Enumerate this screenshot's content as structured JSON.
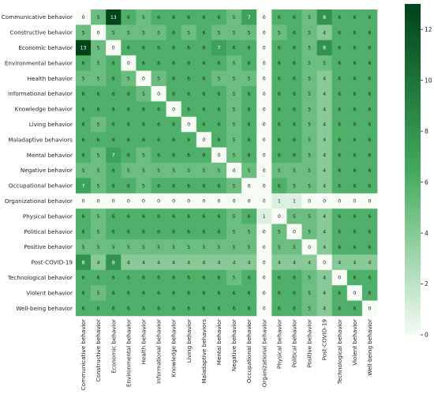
{
  "chart_data": {
    "type": "heatmap",
    "rows": [
      "Communicative behavior",
      "Constructive behavior",
      "Economic behavior",
      "Environmental behavior",
      "Health behavior",
      "Informational behavior",
      "Knowledge behavior",
      "Living behavior",
      "Maladaptive behaviors",
      "Mental behavior",
      "Negative behavior",
      "Occupational behavior",
      "Organizational behavior",
      "Physical behavior",
      "Political behavior",
      "Positive behavior",
      "Post-COVID-19",
      "Technological behavior",
      "Violent behavior",
      "Well-being behavior"
    ],
    "columns": [
      "Communicative behavior",
      "Constructive behavior",
      "Economic behavior",
      "Environmental behavior",
      "Health behavior",
      "Informational behavior",
      "Knowledge behavior",
      "Living behavior",
      "Maladaptive behaviors",
      "Mental behavior",
      "Negative behavior",
      "Occupational behavior",
      "Organizational behavior",
      "Physical behavior",
      "Political behavior",
      "Positive behavior",
      "Post-COVID-19",
      "Technological behavior",
      "Violent behavior",
      "Well-being behavior"
    ],
    "values": [
      [
        0,
        5,
        13,
        6,
        5,
        6,
        6,
        6,
        6,
        6,
        5,
        7,
        0,
        6,
        6,
        5,
        8,
        6,
        6,
        6
      ],
      [
        5,
        0,
        5,
        5,
        5,
        5,
        6,
        5,
        6,
        5,
        5,
        5,
        0,
        5,
        6,
        5,
        4,
        6,
        6,
        6
      ],
      [
        13,
        5,
        0,
        6,
        6,
        6,
        6,
        6,
        6,
        7,
        6,
        6,
        0,
        6,
        6,
        5,
        8,
        6,
        6,
        6
      ],
      [
        6,
        5,
        6,
        0,
        6,
        6,
        6,
        6,
        6,
        6,
        5,
        6,
        0,
        6,
        6,
        5,
        5,
        6,
        6,
        6
      ],
      [
        5,
        5,
        6,
        5,
        0,
        5,
        6,
        6,
        6,
        5,
        5,
        5,
        0,
        6,
        6,
        5,
        4,
        6,
        6,
        6
      ],
      [
        6,
        6,
        6,
        6,
        5,
        0,
        6,
        6,
        6,
        6,
        5,
        6,
        0,
        6,
        6,
        5,
        4,
        6,
        6,
        6
      ],
      [
        6,
        6,
        6,
        6,
        6,
        6,
        0,
        6,
        6,
        6,
        5,
        6,
        0,
        6,
        6,
        5,
        4,
        6,
        6,
        6
      ],
      [
        6,
        5,
        6,
        6,
        6,
        6,
        6,
        0,
        6,
        6,
        5,
        6,
        0,
        6,
        6,
        5,
        4,
        6,
        6,
        6
      ],
      [
        6,
        6,
        6,
        6,
        6,
        6,
        6,
        6,
        0,
        6,
        5,
        6,
        0,
        6,
        6,
        5,
        4,
        6,
        6,
        6
      ],
      [
        6,
        5,
        7,
        6,
        5,
        6,
        6,
        6,
        6,
        0,
        5,
        6,
        0,
        6,
        6,
        5,
        4,
        6,
        6,
        6
      ],
      [
        5,
        5,
        6,
        5,
        5,
        5,
        5,
        5,
        5,
        5,
        0,
        5,
        0,
        5,
        5,
        5,
        4,
        6,
        6,
        6
      ],
      [
        7,
        5,
        6,
        6,
        5,
        6,
        6,
        6,
        6,
        6,
        5,
        0,
        0,
        6,
        5,
        5,
        4,
        6,
        6,
        6
      ],
      [
        0,
        0,
        0,
        0,
        0,
        0,
        0,
        0,
        0,
        0,
        0,
        0,
        0,
        1,
        1,
        0,
        0,
        0,
        0,
        0
      ],
      [
        6,
        5,
        6,
        6,
        6,
        6,
        6,
        6,
        6,
        6,
        5,
        6,
        1,
        0,
        5,
        5,
        4,
        6,
        6,
        6
      ],
      [
        6,
        5,
        6,
        6,
        6,
        6,
        6,
        6,
        6,
        6,
        5,
        5,
        0,
        5,
        0,
        5,
        4,
        6,
        6,
        6
      ],
      [
        5,
        5,
        5,
        5,
        5,
        5,
        5,
        5,
        5,
        5,
        5,
        5,
        0,
        5,
        5,
        0,
        4,
        6,
        6,
        6
      ],
      [
        8,
        4,
        8,
        4,
        4,
        4,
        4,
        4,
        4,
        4,
        4,
        4,
        0,
        4,
        4,
        4,
        0,
        4,
        4,
        4
      ],
      [
        6,
        6,
        6,
        6,
        6,
        6,
        6,
        6,
        6,
        6,
        5,
        6,
        0,
        6,
        6,
        5,
        4,
        0,
        6,
        6
      ],
      [
        6,
        5,
        6,
        6,
        6,
        6,
        6,
        6,
        6,
        6,
        6,
        6,
        0,
        6,
        6,
        5,
        4,
        6,
        0,
        6
      ],
      [
        6,
        6,
        6,
        6,
        6,
        6,
        6,
        6,
        6,
        6,
        6,
        6,
        0,
        6,
        6,
        5,
        4,
        6,
        6,
        0
      ]
    ],
    "colorbar": {
      "min": 0,
      "max": 13,
      "ticks": [
        0,
        2,
        4,
        6,
        8,
        10,
        12
      ]
    },
    "colors": {
      "low": "#f7fcf5",
      "mid": "#41ab5d",
      "high": "#00441b"
    }
  }
}
